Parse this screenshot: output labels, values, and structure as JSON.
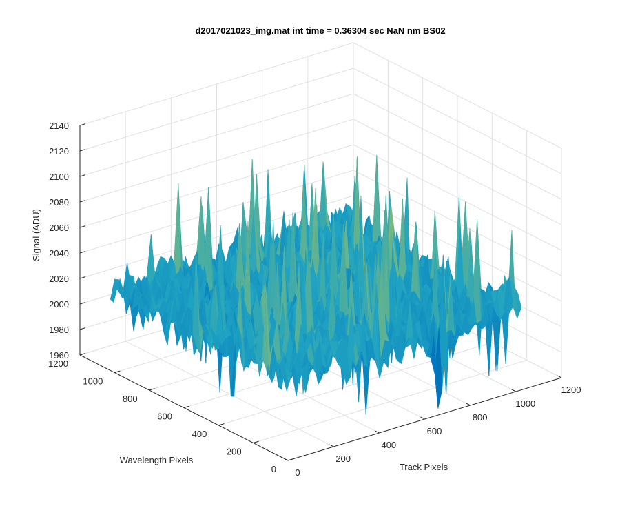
{
  "chart_data": {
    "type": "surface",
    "title": "d2017021023_img.mat int time = 0.36304 sec  NaN nm BS02",
    "xlabel": "Track Pixels",
    "ylabel": "Wavelength Pixels",
    "zlabel": "Signal (ADU)",
    "xlim": [
      0,
      1200
    ],
    "ylim": [
      0,
      1200
    ],
    "zlim": [
      1960,
      2140
    ],
    "xticks": [
      "0",
      "200",
      "400",
      "600",
      "800",
      "1000",
      "1200"
    ],
    "yticks": [
      "0",
      "200",
      "400",
      "600",
      "800",
      "1000",
      "1200"
    ],
    "zticks": [
      "1960",
      "1980",
      "2000",
      "2020",
      "2040",
      "2060",
      "2080",
      "2100",
      "2120",
      "2140"
    ],
    "data_extent": {
      "x": [
        0,
        1024
      ],
      "y": [
        0,
        1024
      ]
    },
    "signal_mean": 2024,
    "signal_range": [
      1965,
      2135
    ],
    "grid": true,
    "colormap": "parula",
    "colors": {
      "low": "#0072bd",
      "mid": "#1fa3c2",
      "high": "#b7c850"
    }
  }
}
